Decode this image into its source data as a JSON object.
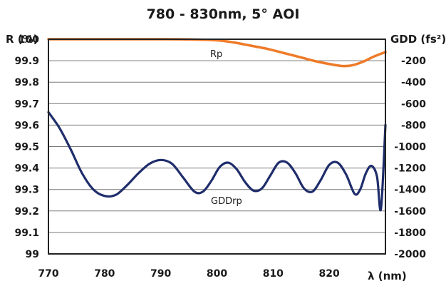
{
  "chart_data": {
    "type": "line",
    "title": "780 - 830nm, 5° AOI",
    "xlabel": "λ (nm)",
    "ylabel_left": "R (%)",
    "ylabel_right": "GDD (fs²)",
    "xlim": [
      770,
      830
    ],
    "ylim_left": [
      99,
      100
    ],
    "ylim_right": [
      -2000,
      0
    ],
    "x_ticks": [
      "770",
      "780",
      "790",
      "800",
      "810",
      "820"
    ],
    "y_ticks_left": [
      "99",
      "99.1",
      "99.2",
      "99.3",
      "99.4",
      "99.5",
      "99.6",
      "99.7",
      "99.8",
      "99.9",
      "100"
    ],
    "y_ticks_right": [
      "-2000",
      "-1800",
      "-1600",
      "-1400",
      "-1200",
      "-1000",
      "-800",
      "-600",
      "-400",
      "-200"
    ],
    "grid": "horizontal",
    "series": [
      {
        "name": "Rp",
        "axis": "left",
        "color": "#EE7A28",
        "x": [
          770,
          775,
          780,
          785,
          790,
          795,
          800,
          803,
          806,
          809,
          812,
          815,
          818,
          821,
          822.5,
          824,
          826,
          828,
          830
        ],
        "y": [
          100,
          100,
          100,
          100,
          100,
          99.999,
          99.995,
          99.985,
          99.97,
          99.955,
          99.935,
          99.915,
          99.895,
          99.88,
          99.875,
          99.878,
          99.895,
          99.92,
          99.94
        ]
      },
      {
        "name": "GDDrp",
        "axis": "right",
        "color": "#1F2D6B",
        "x": [
          770,
          772,
          774,
          776,
          778,
          780,
          782,
          784,
          786,
          788,
          790,
          792,
          794,
          796,
          797.5,
          799,
          800.5,
          802,
          803.5,
          805,
          806.5,
          808,
          809.5,
          811,
          812.5,
          814,
          815.5,
          817,
          818.5,
          820,
          821.5,
          823,
          824.5,
          825.5,
          826.5,
          827.5,
          828.5,
          829.2,
          830
        ],
        "y": [
          -680,
          -830,
          -1030,
          -1250,
          -1400,
          -1460,
          -1450,
          -1360,
          -1250,
          -1160,
          -1125,
          -1160,
          -1290,
          -1420,
          -1420,
          -1320,
          -1190,
          -1150,
          -1210,
          -1330,
          -1410,
          -1390,
          -1270,
          -1150,
          -1150,
          -1250,
          -1390,
          -1420,
          -1310,
          -1170,
          -1150,
          -1260,
          -1440,
          -1400,
          -1250,
          -1180,
          -1280,
          -1580,
          -800
        ]
      }
    ]
  }
}
